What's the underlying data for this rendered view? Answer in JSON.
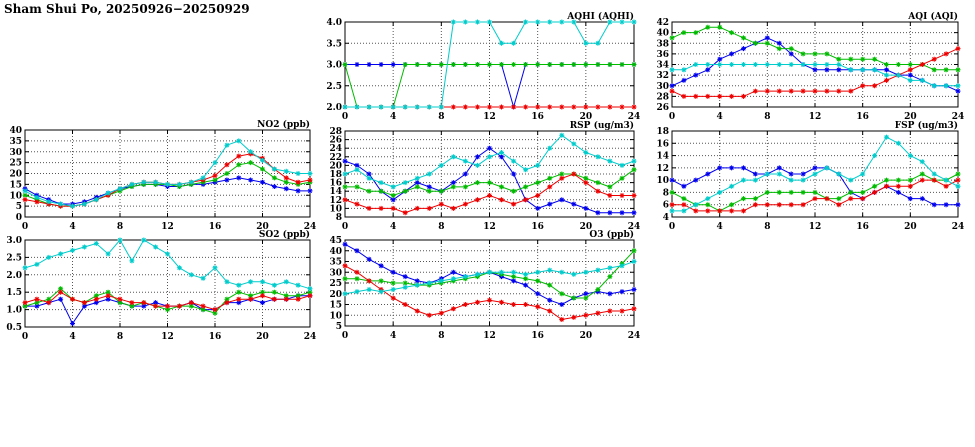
{
  "page": {
    "title": "Sham Shui Po, 20250926−20250929"
  },
  "colors": {
    "blue": "#0000ee",
    "green": "#00bb00",
    "red": "#ee0000",
    "cyan": "#00cccc"
  },
  "chart_data": [
    {
      "id": "aqhi",
      "type": "line",
      "title": "AQHI (AQHI)",
      "xlabel": "",
      "ylabel": "AQHI",
      "xlim": [
        0,
        24
      ],
      "ylim": [
        2.0,
        4.0
      ],
      "x_ticks": [
        0,
        4,
        8,
        12,
        16,
        20,
        24
      ],
      "y_step": 0.5,
      "y_decimals": 1,
      "grid": true,
      "legend": "none",
      "series": [
        {
          "name": "series-blue",
          "color": "blue",
          "values": [
            3,
            3,
            3,
            3,
            3,
            3,
            3,
            3,
            3,
            3,
            3,
            3,
            3,
            3,
            2,
            3,
            3,
            3,
            3,
            3,
            3,
            3,
            3,
            3,
            3
          ]
        },
        {
          "name": "series-green",
          "color": "green",
          "values": [
            3,
            2,
            2,
            2,
            2,
            3,
            3,
            3,
            3,
            3,
            3,
            3,
            3,
            3,
            3,
            3,
            3,
            3,
            3,
            3,
            3,
            3,
            3,
            3,
            3
          ]
        },
        {
          "name": "series-red",
          "color": "red",
          "values": [
            2,
            2,
            2,
            2,
            2,
            2,
            2,
            2,
            2,
            2,
            2,
            2,
            2,
            2,
            2,
            2,
            2,
            2,
            2,
            2,
            2,
            2,
            2,
            2,
            2
          ]
        },
        {
          "name": "series-cyan",
          "color": "cyan",
          "values": [
            2,
            2,
            2,
            2,
            2,
            2,
            2,
            2,
            2,
            4,
            4,
            4,
            4,
            3.5,
            3.5,
            4,
            4,
            4,
            4,
            4,
            3.5,
            3.5,
            4,
            4,
            4
          ]
        }
      ]
    },
    {
      "id": "aqi",
      "type": "line",
      "title": "AQI (AQI)",
      "xlabel": "",
      "ylabel": "AQI",
      "xlim": [
        0,
        24
      ],
      "ylim": [
        26,
        42
      ],
      "x_ticks": [
        0,
        4,
        8,
        12,
        16,
        20,
        24
      ],
      "y_step": 2,
      "y_decimals": 0,
      "grid": true,
      "legend": "none",
      "series": [
        {
          "name": "series-blue",
          "color": "blue",
          "values": [
            30,
            31,
            32,
            33,
            35,
            36,
            37,
            38,
            39,
            38,
            36,
            34,
            33,
            33,
            33,
            33,
            33,
            33,
            33,
            32,
            32,
            31,
            30,
            30,
            29
          ]
        },
        {
          "name": "series-green",
          "color": "green",
          "values": [
            39,
            40,
            40,
            41,
            41,
            40,
            39,
            38,
            38,
            37,
            37,
            36,
            36,
            36,
            35,
            35,
            35,
            35,
            34,
            34,
            34,
            34,
            33,
            33,
            33
          ]
        },
        {
          "name": "series-red",
          "color": "red",
          "values": [
            29,
            28,
            28,
            28,
            28,
            28,
            28,
            29,
            29,
            29,
            29,
            29,
            29,
            29,
            29,
            29,
            30,
            30,
            31,
            32,
            33,
            34,
            35,
            36,
            37
          ]
        },
        {
          "name": "series-cyan",
          "color": "cyan",
          "values": [
            33,
            33,
            34,
            34,
            34,
            34,
            34,
            34,
            34,
            34,
            34,
            34,
            34,
            34,
            34,
            33,
            33,
            33,
            32,
            32,
            31,
            31,
            30,
            30,
            30
          ]
        }
      ]
    },
    {
      "id": "no2",
      "type": "line",
      "title": "NO2 (ppb)",
      "xlabel": "",
      "ylabel": "NO2 (ppb)",
      "xlim": [
        0,
        24
      ],
      "ylim": [
        0,
        40
      ],
      "x_ticks": [
        0,
        4,
        8,
        12,
        16,
        20,
        24
      ],
      "y_step": 5,
      "y_decimals": 0,
      "grid": true,
      "legend": "none",
      "series": [
        {
          "name": "series-blue",
          "color": "blue",
          "values": [
            13,
            10,
            8,
            6,
            6,
            7,
            9,
            11,
            13,
            14,
            15,
            15,
            14,
            14,
            15,
            15,
            16,
            17,
            18,
            17,
            16,
            14,
            13,
            12,
            12
          ]
        },
        {
          "name": "series-green",
          "color": "green",
          "values": [
            10,
            8,
            6,
            5,
            5,
            6,
            8,
            10,
            12,
            14,
            15,
            15,
            15,
            14,
            15,
            16,
            17,
            20,
            24,
            25,
            22,
            18,
            16,
            15,
            16
          ]
        },
        {
          "name": "series-red",
          "color": "red",
          "values": [
            8,
            7,
            6,
            5,
            5,
            6,
            8,
            10,
            13,
            15,
            16,
            16,
            15,
            15,
            16,
            17,
            19,
            24,
            28,
            29,
            27,
            22,
            18,
            16,
            17
          ]
        },
        {
          "name": "series-cyan",
          "color": "cyan",
          "values": [
            12,
            9,
            7,
            6,
            5,
            6,
            8,
            11,
            13,
            15,
            16,
            16,
            15,
            15,
            16,
            18,
            25,
            33,
            35,
            30,
            26,
            22,
            21,
            20,
            20
          ]
        }
      ]
    },
    {
      "id": "rsp",
      "type": "line",
      "title": "RSP (ug/m3)",
      "xlabel": "",
      "ylabel": "RSP (ug/m3)",
      "xlim": [
        0,
        24
      ],
      "ylim": [
        8,
        28
      ],
      "x_ticks": [
        0,
        4,
        8,
        12,
        16,
        20,
        24
      ],
      "y_step": 2,
      "y_decimals": 0,
      "grid": true,
      "legend": "none",
      "series": [
        {
          "name": "series-blue",
          "color": "blue",
          "values": [
            21,
            20,
            18,
            14,
            12,
            14,
            16,
            15,
            14,
            16,
            18,
            22,
            24,
            22,
            18,
            12,
            10,
            11,
            12,
            11,
            10,
            9,
            9,
            9,
            9
          ]
        },
        {
          "name": "series-green",
          "color": "green",
          "values": [
            15,
            15,
            14,
            14,
            13,
            14,
            15,
            14,
            14,
            15,
            15,
            16,
            16,
            15,
            14,
            15,
            16,
            17,
            18,
            18,
            17,
            16,
            15,
            17,
            19
          ]
        },
        {
          "name": "series-red",
          "color": "red",
          "values": [
            12,
            11,
            10,
            10,
            10,
            9,
            10,
            10,
            11,
            10,
            11,
            12,
            13,
            12,
            11,
            12,
            13,
            15,
            17,
            18,
            16,
            14,
            13,
            13,
            13
          ]
        },
        {
          "name": "series-cyan",
          "color": "cyan",
          "values": [
            18,
            19,
            17,
            16,
            15,
            16,
            17,
            18,
            20,
            22,
            21,
            20,
            22,
            23,
            21,
            19,
            20,
            24,
            27,
            25,
            23,
            22,
            21,
            20,
            21
          ]
        }
      ]
    },
    {
      "id": "fsp",
      "type": "line",
      "title": "FSP (ug/m3)",
      "xlabel": "",
      "ylabel": "FSP (ug/m3)",
      "xlim": [
        0,
        24
      ],
      "ylim": [
        4,
        18
      ],
      "x_ticks": [
        0,
        4,
        8,
        12,
        16,
        20,
        24
      ],
      "y_step": 2,
      "y_decimals": 0,
      "grid": true,
      "legend": "none",
      "series": [
        {
          "name": "series-blue",
          "color": "blue",
          "values": [
            10,
            9,
            10,
            11,
            12,
            12,
            12,
            11,
            11,
            12,
            11,
            11,
            12,
            12,
            11,
            8,
            7,
            8,
            9,
            8,
            7,
            7,
            6,
            6,
            6
          ]
        },
        {
          "name": "series-green",
          "color": "green",
          "values": [
            8,
            7,
            6,
            6,
            5,
            6,
            7,
            7,
            8,
            8,
            8,
            8,
            8,
            7,
            7,
            8,
            8,
            9,
            10,
            10,
            10,
            11,
            10,
            10,
            11
          ]
        },
        {
          "name": "series-red",
          "color": "red",
          "values": [
            6,
            6,
            5,
            5,
            5,
            5,
            5,
            6,
            6,
            6,
            6,
            6,
            7,
            7,
            6,
            7,
            7,
            8,
            9,
            9,
            9,
            10,
            10,
            9,
            10
          ]
        },
        {
          "name": "series-cyan",
          "color": "cyan",
          "values": [
            5,
            5,
            6,
            7,
            8,
            9,
            10,
            10,
            11,
            11,
            10,
            10,
            11,
            12,
            11,
            10,
            11,
            14,
            17,
            16,
            14,
            13,
            11,
            10,
            9
          ]
        }
      ]
    },
    {
      "id": "so2",
      "type": "line",
      "title": "SO2 (ppb)",
      "xlabel": "",
      "ylabel": "SO2 (ppb)",
      "xlim": [
        0,
        24
      ],
      "ylim": [
        0.5,
        3.0
      ],
      "x_ticks": [
        0,
        4,
        8,
        12,
        16,
        20,
        24
      ],
      "y_step": 0.5,
      "y_decimals": 1,
      "grid": true,
      "legend": "none",
      "series": [
        {
          "name": "series-blue",
          "color": "blue",
          "values": [
            1.1,
            1.1,
            1.2,
            1.3,
            0.6,
            1.1,
            1.2,
            1.3,
            1.2,
            1.1,
            1.1,
            1.2,
            1.1,
            1.1,
            1.2,
            1.0,
            1.0,
            1.2,
            1.2,
            1.3,
            1.2,
            1.3,
            1.3,
            1.4,
            1.4
          ]
        },
        {
          "name": "series-green",
          "color": "green",
          "values": [
            1.1,
            1.2,
            1.3,
            1.6,
            1.3,
            1.2,
            1.4,
            1.5,
            1.2,
            1.1,
            1.2,
            1.1,
            1.0,
            1.1,
            1.1,
            1.0,
            0.9,
            1.3,
            1.5,
            1.4,
            1.5,
            1.5,
            1.4,
            1.4,
            1.5
          ]
        },
        {
          "name": "series-red",
          "color": "red",
          "values": [
            1.2,
            1.3,
            1.2,
            1.5,
            1.3,
            1.2,
            1.3,
            1.4,
            1.3,
            1.2,
            1.2,
            1.1,
            1.1,
            1.1,
            1.2,
            1.1,
            1.0,
            1.2,
            1.3,
            1.3,
            1.4,
            1.3,
            1.3,
            1.3,
            1.4
          ]
        },
        {
          "name": "series-cyan",
          "color": "cyan",
          "values": [
            2.2,
            2.3,
            2.5,
            2.6,
            2.7,
            2.8,
            2.9,
            2.6,
            3.0,
            2.4,
            3.0,
            2.8,
            2.6,
            2.2,
            2.0,
            1.9,
            2.2,
            1.8,
            1.7,
            1.8,
            1.8,
            1.7,
            1.8,
            1.7,
            1.6
          ]
        }
      ]
    },
    {
      "id": "o3",
      "type": "line",
      "title": "O3 (ppb)",
      "xlabel": "",
      "ylabel": "O3 (ppb)",
      "xlim": [
        0,
        24
      ],
      "ylim": [
        5,
        45
      ],
      "x_ticks": [
        0,
        4,
        8,
        12,
        16,
        20,
        24
      ],
      "y_step": 5,
      "y_decimals": 0,
      "grid": true,
      "legend": "none",
      "series": [
        {
          "name": "series-blue",
          "color": "blue",
          "values": [
            43,
            40,
            36,
            33,
            30,
            28,
            26,
            25,
            27,
            30,
            28,
            29,
            30,
            28,
            26,
            24,
            20,
            17,
            15,
            18,
            20,
            21,
            20,
            21,
            22
          ]
        },
        {
          "name": "series-green",
          "color": "green",
          "values": [
            27,
            27,
            26,
            26,
            25,
            25,
            24,
            24,
            25,
            26,
            27,
            28,
            30,
            29,
            28,
            27,
            26,
            24,
            20,
            18,
            18,
            22,
            28,
            34,
            40
          ]
        },
        {
          "name": "series-red",
          "color": "red",
          "values": [
            33,
            30,
            26,
            22,
            18,
            15,
            12,
            10,
            11,
            13,
            15,
            16,
            17,
            16,
            15,
            15,
            14,
            12,
            8,
            9,
            10,
            11,
            12,
            12,
            13
          ]
        },
        {
          "name": "series-cyan",
          "color": "cyan",
          "values": [
            20,
            21,
            22,
            21,
            22,
            23,
            24,
            25,
            26,
            27,
            28,
            29,
            30,
            30,
            30,
            29,
            30,
            31,
            30,
            29,
            30,
            31,
            32,
            33,
            35
          ]
        }
      ]
    }
  ]
}
